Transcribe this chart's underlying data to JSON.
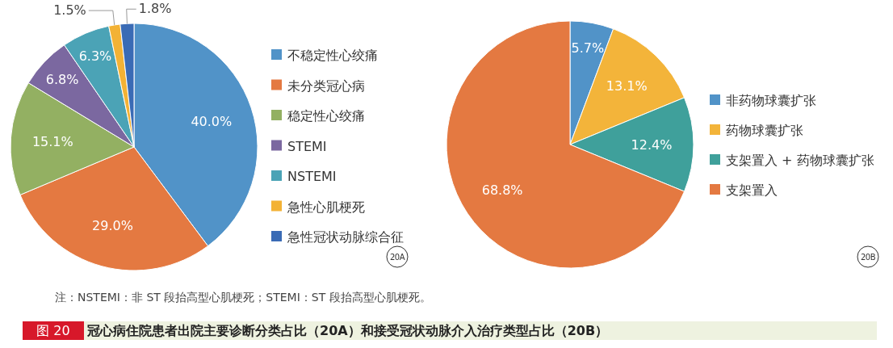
{
  "chart_data": [
    {
      "type": "pie",
      "categories": [
        "不稳定性心绞痛",
        "未分类冠心病",
        "稳定性心绞痛",
        "STEMI",
        "NSTEMI",
        "急性心肌梗死",
        "急性冠状动脉综合征"
      ],
      "values": [
        40.0,
        29.0,
        15.1,
        6.8,
        6.3,
        1.5,
        1.8
      ],
      "value_labels": [
        "40.0%",
        "29.0%",
        "15.1%",
        "6.8%",
        "6.3%",
        "1.5%",
        "1.8%"
      ],
      "colors": [
        "#5193c8",
        "#e47941",
        "#93b062",
        "#7b68a0",
        "#4ba3b6",
        "#f3b235",
        "#3a6bb5"
      ],
      "legend": "right",
      "annotations": [
        "20A",
        "注：NSTEMI：非 ST 段抬高型心肌梗死；STEMI：ST 段抬高型心肌梗死。",
        "图 20",
        "冠心病住院患者出院主要诊断分类占比（20A）和接受冠状动脉介入治疗类型占比（20B）"
      ]
    },
    {
      "type": "pie",
      "categories": [
        "非药物球囊扩张",
        "药物球囊扩张",
        "支架置入 + 药物球囊扩张",
        "支架置入"
      ],
      "values": [
        5.7,
        13.1,
        12.4,
        68.8
      ],
      "value_labels": [
        "5.7%",
        "13.1%",
        "12.4%",
        "68.8%"
      ],
      "colors": [
        "#5193c8",
        "#f3b43a",
        "#3fa09b",
        "#e47941"
      ],
      "legend": "right",
      "annotations": [
        "20B"
      ]
    }
  ]
}
